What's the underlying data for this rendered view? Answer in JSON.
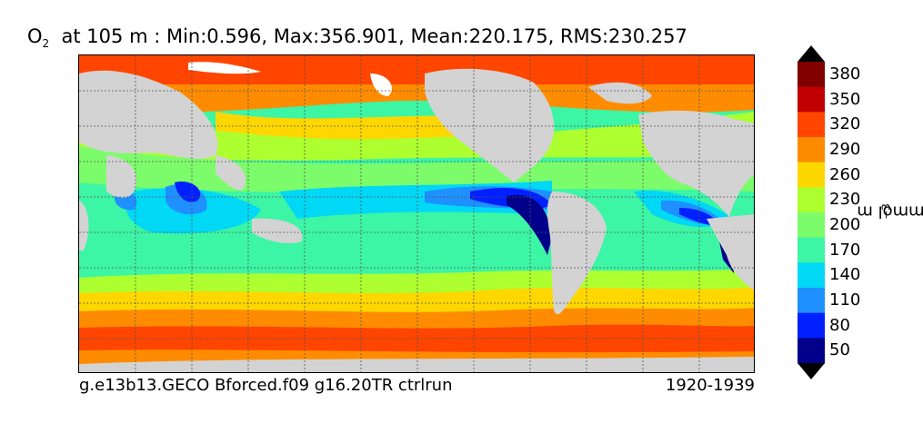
{
  "title": {
    "species": "O",
    "subscript": "2",
    "text": "at 105 m : Min:0.596, Max:356.901, Mean:220.175, RMS:230.257"
  },
  "caption": {
    "run_name": "g.e13b13.GECO Bforced.f09 g16.20TR ctrlrun",
    "years": "1920-1939"
  },
  "colorbar": {
    "unit_text": "mmol m",
    "unit_exponent": "−3",
    "tick_labels": [
      "380",
      "350",
      "320",
      "290",
      "260",
      "230",
      "200",
      "170",
      "140",
      "110",
      "80",
      "50"
    ],
    "levels_top_to_bottom": [
      "#800000",
      "#c00000",
      "#ff4500",
      "#ff8c00",
      "#ffd700",
      "#adff2f",
      "#7cfc6a",
      "#3cf5a5",
      "#00d8f5",
      "#1e90ff",
      "#0020ff",
      "#00008b"
    ],
    "extend": "both"
  },
  "colors": {
    "land": "#d3d3d3",
    "ice": "#ffffff",
    "gridline": "#555555"
  },
  "map": {
    "variable": "O2 concentration",
    "depth": "105 m",
    "projection": "cylindrical (Pacific-centered)",
    "grid": "dashed"
  }
}
